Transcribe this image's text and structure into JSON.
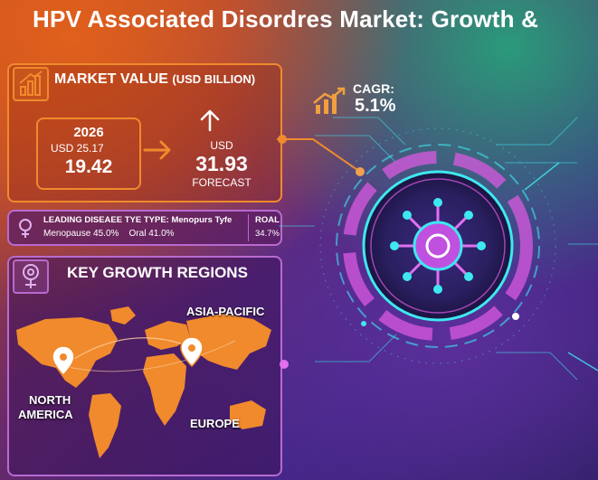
{
  "title": "HPV Associated Disordres Market: Growth &",
  "market_value": {
    "header": "MARKET VALUE",
    "header_unit": "(USD BILLION)",
    "year": "2026",
    "current_label": "USD 25.17",
    "current_value": "19.42",
    "forecast_unit": "USD",
    "forecast_value": "31.93",
    "forecast_label": "FORECAST"
  },
  "cagr": {
    "label": "CAGR:",
    "value": "5.1%"
  },
  "disease_type": {
    "line1": "LEADING DISEAEE TYE TYPE: Menopurs Tyfe",
    "menopause": "Menopause  45.0%",
    "oral": "Oral  41.0%",
    "roal_label": "ROAL",
    "roal_value": "34.7%"
  },
  "regions": {
    "header": "KEY GROWTH REGIONS",
    "asia_pacific": "ASIA-PACIFIC",
    "north": "NORTH",
    "america": "AMERICA",
    "europe": "EUROPE"
  },
  "colors": {
    "orange": "#f08a2c",
    "purple": "#b86ad0",
    "cyan": "#3ee8f0",
    "magenta": "#d95ae0"
  }
}
